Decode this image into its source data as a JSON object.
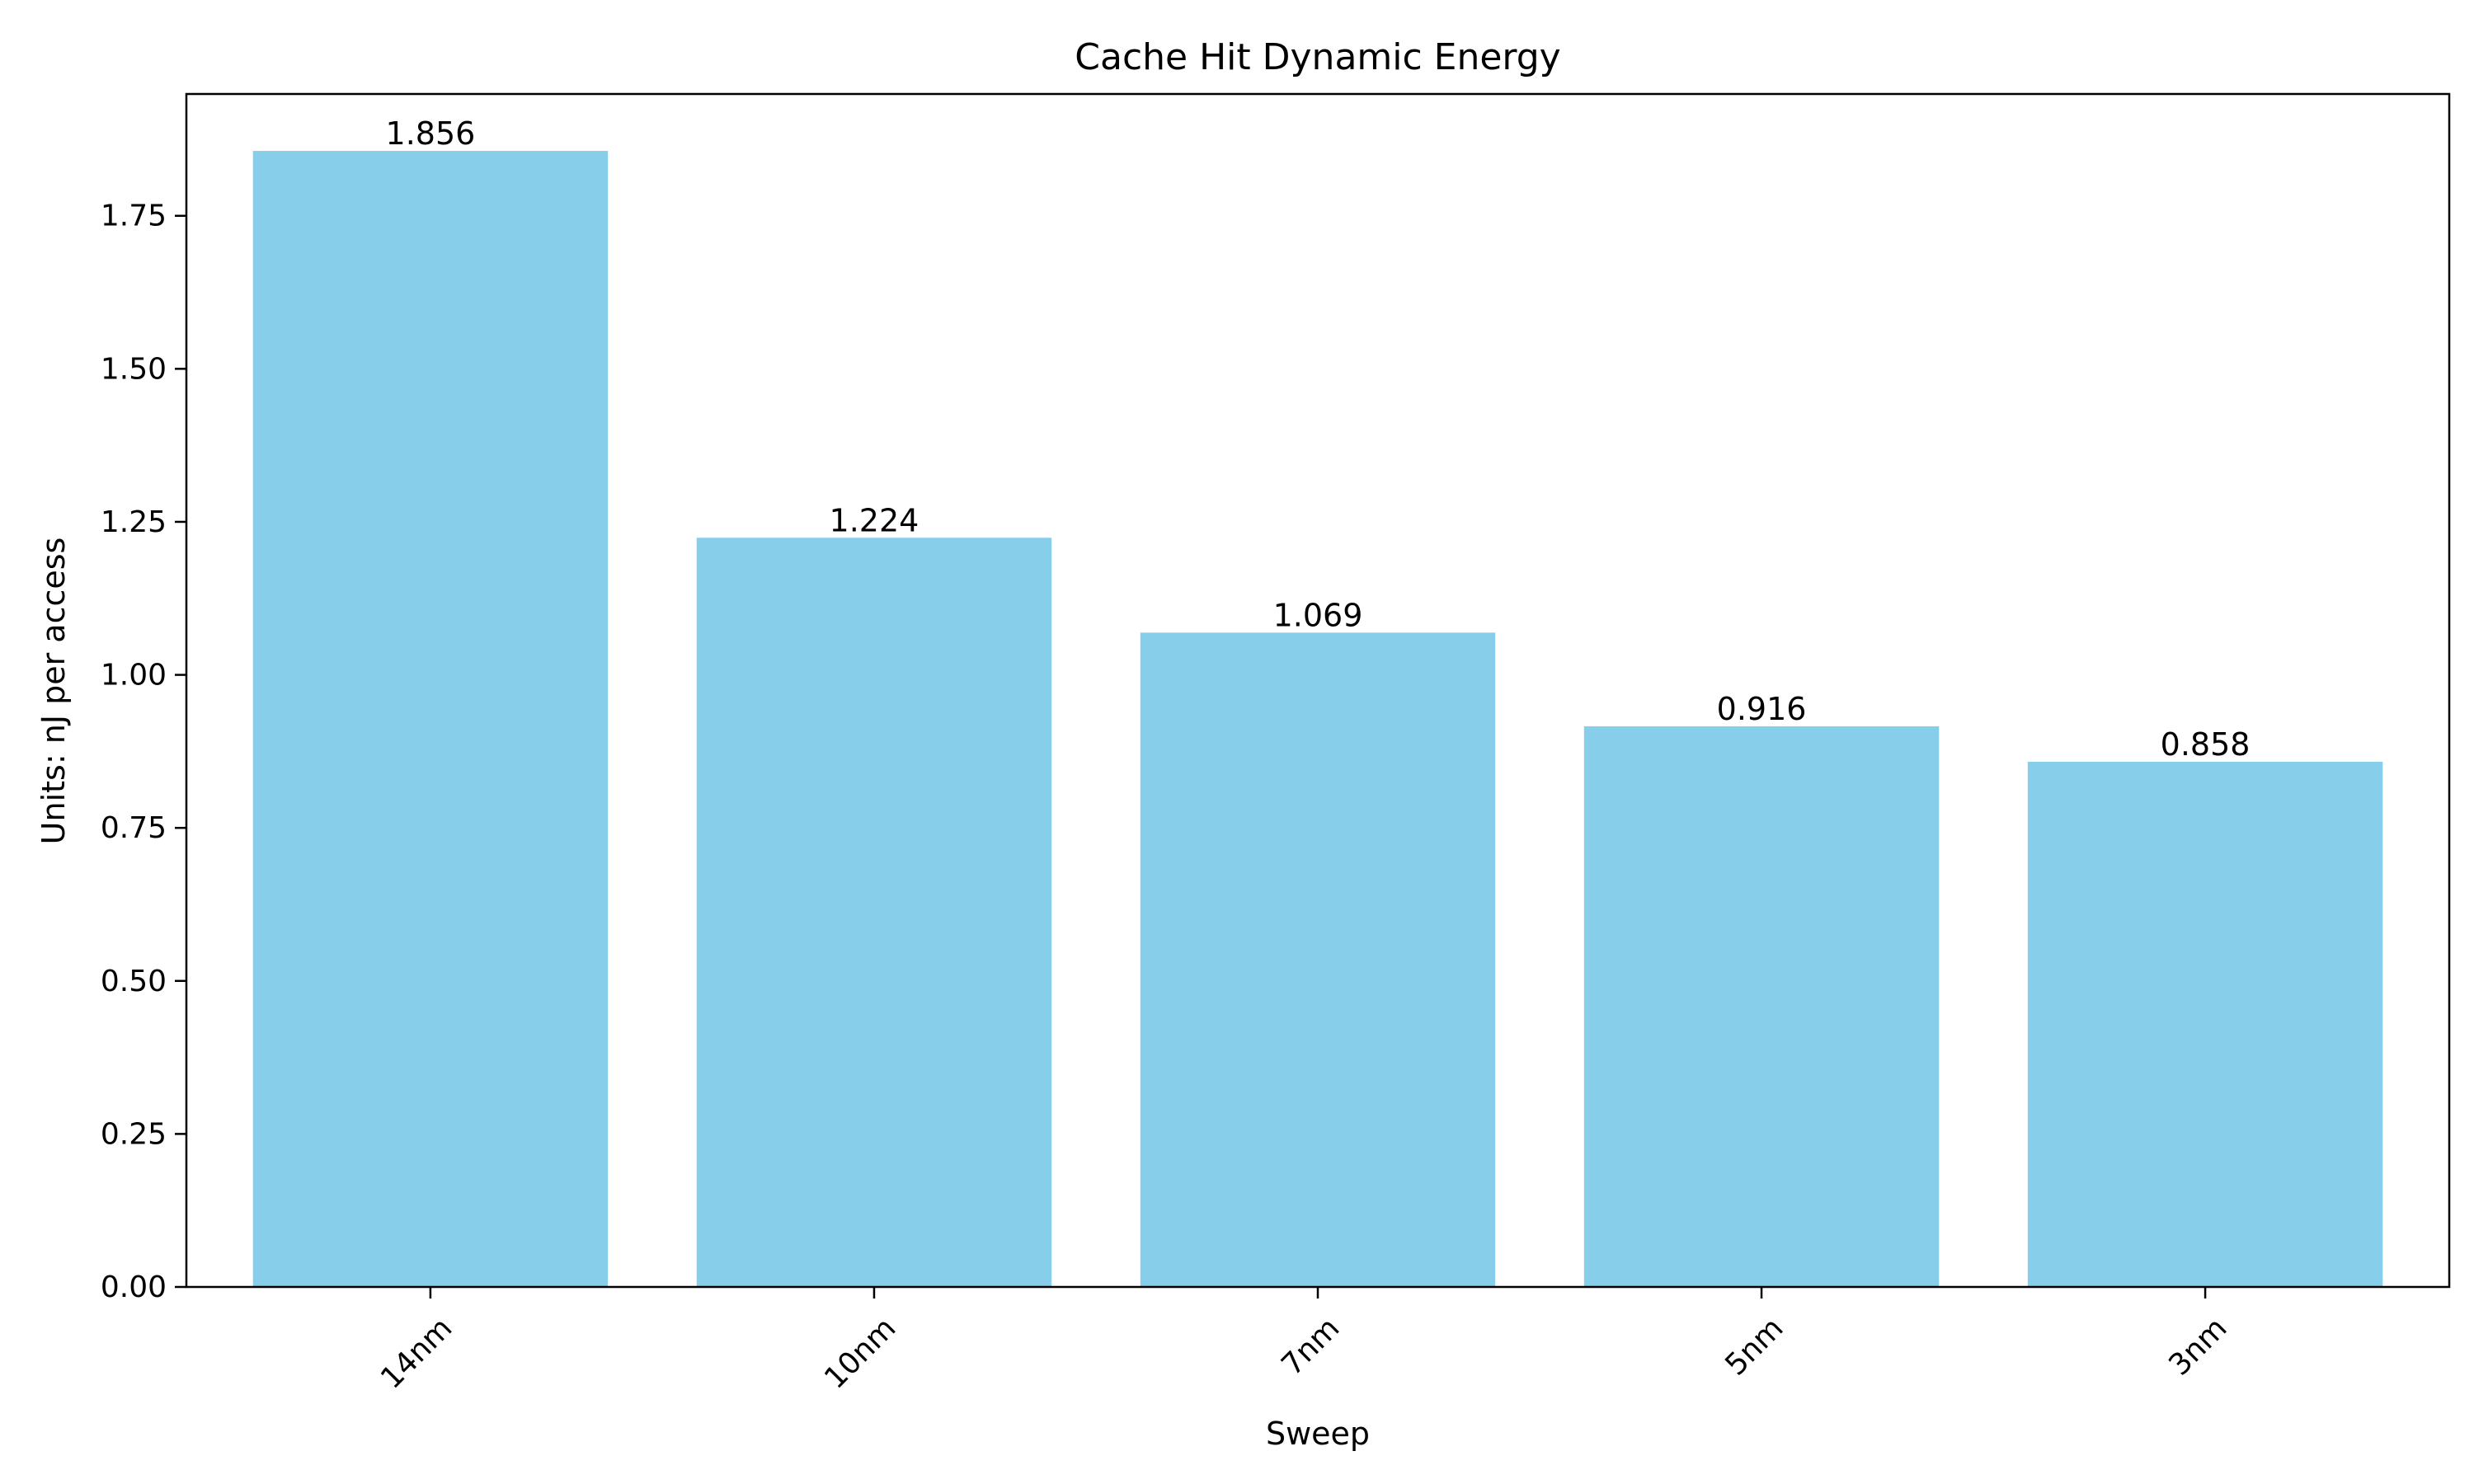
{
  "chart_data": {
    "type": "bar",
    "title": "Cache Hit Dynamic Energy",
    "xlabel": "Sweep",
    "ylabel": "Units: nJ per access",
    "categories": [
      "14nm",
      "10nm",
      "7nm",
      "5nm",
      "3nm"
    ],
    "values": [
      1.856,
      1.224,
      1.069,
      0.916,
      0.858
    ],
    "value_labels": [
      "1.856",
      "1.224",
      "1.069",
      "0.916",
      "0.858"
    ],
    "ylim": [
      0,
      1.949
    ],
    "yticks": [
      0,
      0.25,
      0.5,
      0.75,
      1.0,
      1.25,
      1.5,
      1.75
    ],
    "ytick_labels": [
      "0.00",
      "0.25",
      "0.50",
      "0.75",
      "1.00",
      "1.25",
      "1.50",
      "1.75"
    ],
    "grid": false,
    "legend": "none",
    "bar_color": "#87CEEB"
  }
}
